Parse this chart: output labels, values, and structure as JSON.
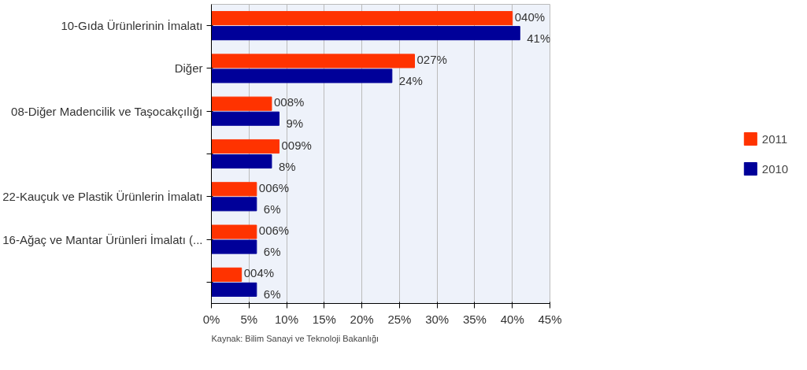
{
  "chart_data": {
    "type": "bar",
    "orientation": "horizontal",
    "categories": [
      "10-Gıda Ürünlerinin İmalatı",
      "Diğer",
      "08-Diğer Madencilik ve Taşocakçılığı",
      null,
      "22-Kauçuk ve Plastik Ürünlerin İmalatı",
      "16-Ağaç ve Mantar Ürünleri İmalatı (...",
      null
    ],
    "series": [
      {
        "name": "2011",
        "color": "#ff3300",
        "values": [
          40,
          27,
          8,
          9,
          6,
          6,
          4
        ],
        "value_labels": [
          "040%",
          "027%",
          "008%",
          "009%",
          "006%",
          "006%",
          "004%"
        ]
      },
      {
        "name": "2010",
        "color": "#000099",
        "values": [
          41,
          24,
          9,
          8,
          6,
          6,
          6
        ],
        "value_labels": [
          "41%",
          "24%",
          "9%",
          "8%",
          "6%",
          "6%",
          "6%"
        ]
      }
    ],
    "xlim": [
      0,
      45
    ],
    "xticks": [
      {
        "value": 0,
        "label": "0%"
      },
      {
        "value": 5,
        "label": "5%"
      },
      {
        "value": 10,
        "label": "10%"
      },
      {
        "value": 15,
        "label": "15%"
      },
      {
        "value": 20,
        "label": "20%"
      },
      {
        "value": 25,
        "label": "25%"
      },
      {
        "value": 30,
        "label": "30%"
      },
      {
        "value": 35,
        "label": "35%"
      },
      {
        "value": 40,
        "label": "40%"
      },
      {
        "value": 45,
        "label": "45%"
      }
    ],
    "grid": "x",
    "legend": "right",
    "annotations": [
      "Kaynak: Bilim Sanayi ve Teknoloji Bakanlığı"
    ]
  }
}
